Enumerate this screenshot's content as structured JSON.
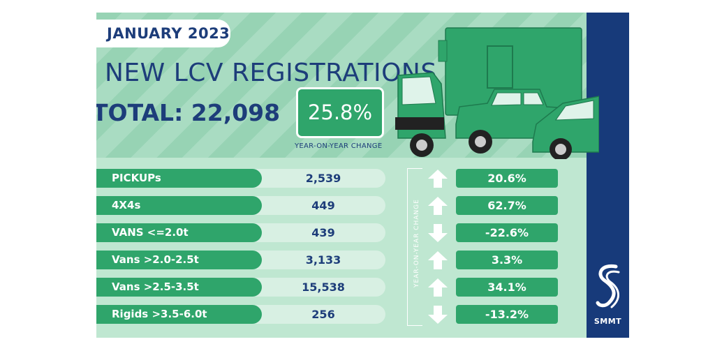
{
  "month": "JANUARY 2023",
  "title": "NEW LCV REGISTRATIONS",
  "total_label": "TOTAL: 22,098",
  "yoy": {
    "value": "25.8%",
    "caption": "YEAR-ON-YEAR CHANGE"
  },
  "vertical_caption": "YEAR-ON-YEAR CHANGE",
  "rows": [
    {
      "category": "PICKUPs",
      "value": "2,539",
      "change": "20.6%",
      "direction": "up"
    },
    {
      "category": "4X4s",
      "value": "449",
      "change": "62.7%",
      "direction": "up"
    },
    {
      "category": "VANS <=2.0t",
      "value": "439",
      "change": "-22.6%",
      "direction": "down"
    },
    {
      "category": "Vans >2.0-2.5t",
      "value": "3,133",
      "change": "3.3%",
      "direction": "up"
    },
    {
      "category": "Vans >2.5-3.5t",
      "value": "15,538",
      "change": "34.1%",
      "direction": "up"
    },
    {
      "category": "Rigids >3.5-6.0t",
      "value": "256",
      "change": "-13.2%",
      "direction": "down"
    }
  ],
  "logo_text": "SMMT",
  "colors": {
    "green": "#2fa56b",
    "navy": "#173a7a",
    "light": "#bfe7d1"
  }
}
